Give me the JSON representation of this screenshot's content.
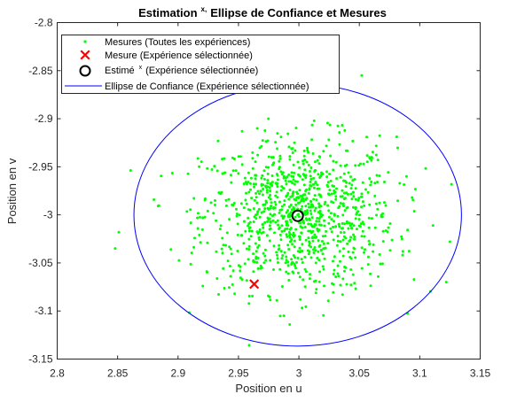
{
  "chart_data": {
    "type": "scatter",
    "title": {
      "before": "Estimation",
      "sup": "x,",
      "after": "Ellipse  de  Confiance  et  Mesures"
    },
    "xlabel": "Position en u",
    "ylabel": "Position en v",
    "xlim": [
      2.8,
      3.15
    ],
    "ylim": [
      -3.15,
      -2.8
    ],
    "xticks": [
      "2.8",
      "2.85",
      "2.9",
      "2.95",
      "3",
      "3.05",
      "3.1",
      "3.15"
    ],
    "yticks": [
      "-2.8",
      "-2.85",
      "-2.9",
      "-2.95",
      "-3",
      "-3.05",
      "-3.1",
      "-3.15"
    ],
    "grid": false,
    "legend": {
      "placement": "top-left",
      "entries": [
        {
          "id": "mesures",
          "text": "Mesures (Toutes les expériences)",
          "color": "#00ff00"
        },
        {
          "id": "mesure_sel",
          "text": "Mesure (Expérience sélectionnée)",
          "color": "#ff0000"
        },
        {
          "id": "estime",
          "text_before": "Estimé",
          "sup": "x",
          "text_after": "(Expérience sélectionnée)",
          "color": "#000000"
        },
        {
          "id": "ellipse",
          "text": "Ellipse de Confiance (Expérience sélectionnée)",
          "color": "#0000ff"
        }
      ]
    },
    "series": [
      {
        "name": "Mesures (Toutes les expériences)",
        "marker": "dot",
        "color": "#00ff00",
        "count": 1000,
        "center": [
          3.0,
          -3.0
        ],
        "std": [
          0.04,
          0.04
        ],
        "seed": 12345,
        "points_visible_outliers": [
          [
            2.848,
            -3.035
          ],
          [
            2.851,
            -3.018
          ],
          [
            3.052,
            -2.855
          ],
          [
            3.125,
            -3.028
          ],
          [
            3.122,
            -3.07
          ]
        ]
      },
      {
        "name": "Mesure (Expérience sélectionnée)",
        "marker": "x",
        "color": "#ff0000",
        "points": [
          [
            2.963,
            -3.072
          ]
        ]
      },
      {
        "name": "Estimé x (Expérience sélectionnée)",
        "marker": "circle",
        "color": "#000000",
        "points": [
          [
            2.999,
            -3.001
          ]
        ]
      },
      {
        "name": "Ellipse de Confiance (Expérience sélectionnée)",
        "marker": "line",
        "color": "#0000ff",
        "ellipse": {
          "center": [
            2.999,
            -3.0
          ],
          "semi_u": 0.1355,
          "semi_v": 0.1365
        }
      }
    ]
  }
}
